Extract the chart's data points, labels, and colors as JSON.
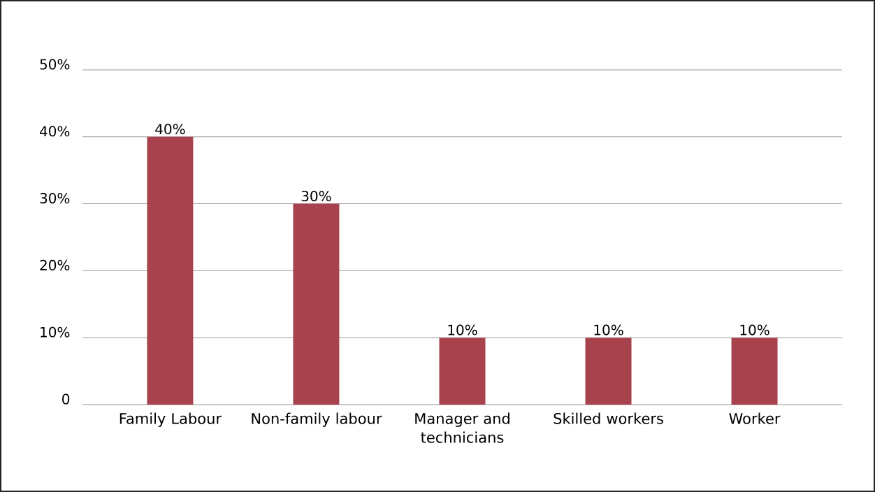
{
  "chart_data": {
    "type": "bar",
    "categories": [
      "Family Labour",
      "Non-family labour",
      "Manager and technicians",
      "Skilled workers",
      "Worker"
    ],
    "values": [
      40,
      30,
      10,
      10,
      10
    ],
    "color": "#a8434d",
    "value_labels": [
      "40%",
      "30%",
      "10%",
      "10%",
      "10%"
    ],
    "ylim": [
      0,
      50
    ],
    "yticks": [
      0,
      {
        "value": 10,
        "label": "10%"
      },
      {
        "value": 20,
        "label": "20%"
      },
      {
        "value": 30,
        "label": "30%"
      },
      {
        "value": 40,
        "label": "40%"
      },
      {
        "value": 50,
        "label": "50%"
      }
    ],
    "grid": "y"
  }
}
